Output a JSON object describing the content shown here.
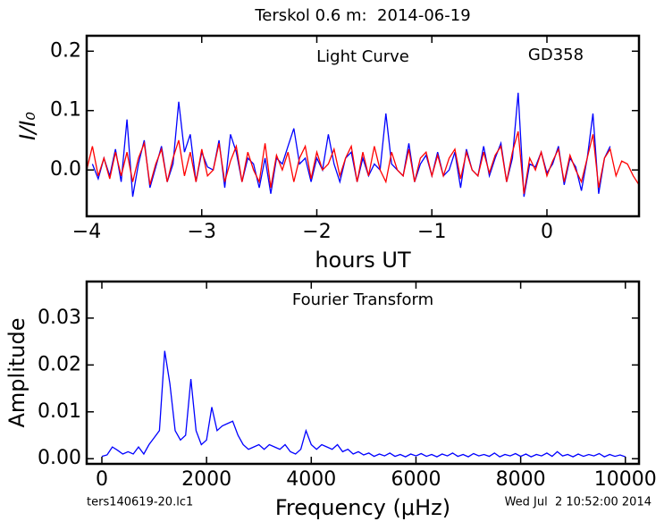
{
  "title": "Terskol 0.6 m:  2014-06-19",
  "footer_left": "ters140619-20.lc1",
  "footer_right": "Wed Jul  2 10:52:00 2014",
  "chart_data": [
    {
      "type": "line",
      "annotations": [
        "Light Curve",
        "GD358"
      ],
      "xlabel": "hours UT",
      "ylabel": "I/I₀",
      "xlim": [
        -4,
        0.8
      ],
      "ylim": [
        -0.078,
        0.226
      ],
      "xticks": [
        {
          "value": -4,
          "label": "−4"
        },
        {
          "value": -3,
          "label": "−3"
        },
        {
          "value": -2,
          "label": "−2"
        },
        {
          "value": -1,
          "label": "−1"
        },
        0
      ],
      "yticks": [
        {
          "value": 0,
          "label": "0.0"
        },
        0.1,
        0.2
      ],
      "x": [
        -4.0,
        -3.95,
        -3.9,
        -3.85,
        -3.8,
        -3.75,
        -3.7,
        -3.65,
        -3.6,
        -3.55,
        -3.5,
        -3.45,
        -3.4,
        -3.35,
        -3.3,
        -3.25,
        -3.2,
        -3.15,
        -3.1,
        -3.05,
        -3.0,
        -2.95,
        -2.9,
        -2.85,
        -2.8,
        -2.75,
        -2.7,
        -2.65,
        -2.6,
        -2.55,
        -2.5,
        -2.45,
        -2.4,
        -2.35,
        -2.3,
        -2.25,
        -2.2,
        -2.15,
        -2.1,
        -2.05,
        -2.0,
        -1.95,
        -1.9,
        -1.85,
        -1.8,
        -1.75,
        -1.7,
        -1.65,
        -1.6,
        -1.55,
        -1.5,
        -1.45,
        -1.4,
        -1.35,
        -1.3,
        -1.25,
        -1.2,
        -1.15,
        -1.1,
        -1.05,
        -1.0,
        -0.95,
        -0.9,
        -0.85,
        -0.8,
        -0.75,
        -0.7,
        -0.65,
        -0.6,
        -0.55,
        -0.5,
        -0.45,
        -0.4,
        -0.35,
        -0.3,
        -0.25,
        -0.2,
        -0.15,
        -0.1,
        -0.05,
        0.0,
        0.05,
        0.1,
        0.15,
        0.2,
        0.25,
        0.3,
        0.35,
        0.4,
        0.45,
        0.5,
        0.55,
        0.6,
        0.65,
        0.7,
        0.75,
        0.8
      ],
      "series": [
        {
          "color": "#0000ff",
          "values": [
            null,
            0.01,
            -0.015,
            0.02,
            -0.01,
            0.035,
            -0.02,
            0.085,
            -0.045,
            0.01,
            0.05,
            -0.03,
            0.005,
            0.04,
            -0.02,
            0.01,
            0.115,
            0.03,
            0.06,
            -0.02,
            0.03,
            0.005,
            0.0,
            0.05,
            -0.03,
            0.06,
            0.03,
            -0.02,
            0.02,
            0.01,
            -0.03,
            0.02,
            -0.04,
            0.02,
            0.01,
            0.04,
            0.07,
            0.01,
            0.02,
            -0.02,
            0.02,
            0.0,
            0.06,
            0.01,
            -0.02,
            0.02,
            0.03,
            -0.02,
            0.02,
            -0.01,
            0.01,
            0.0,
            0.095,
            0.01,
            0.0,
            -0.01,
            0.045,
            -0.02,
            0.01,
            0.025,
            -0.01,
            0.03,
            -0.01,
            0.0,
            0.03,
            -0.03,
            0.035,
            0.0,
            -0.01,
            0.04,
            -0.01,
            0.02,
            0.045,
            -0.02,
            0.02,
            0.13,
            -0.045,
            0.01,
            0.005,
            0.03,
            -0.005,
            0.01,
            0.04,
            -0.025,
            0.02,
            0.005,
            -0.035,
            0.02,
            0.095,
            -0.04,
            0.02,
            0.04,
            null,
            null,
            null,
            null,
            null
          ]
        },
        {
          "color": "#ff0000",
          "values": [
            0.0,
            0.04,
            -0.01,
            0.02,
            -0.015,
            0.03,
            -0.01,
            0.03,
            -0.02,
            0.02,
            0.045,
            -0.025,
            0.01,
            0.035,
            -0.02,
            0.02,
            0.05,
            -0.01,
            0.03,
            -0.02,
            0.035,
            -0.01,
            0.0,
            0.045,
            -0.02,
            0.015,
            0.04,
            -0.02,
            0.03,
            0.0,
            -0.02,
            0.045,
            -0.03,
            0.025,
            0.0,
            0.03,
            -0.02,
            0.02,
            0.04,
            -0.015,
            0.03,
            0.0,
            0.01,
            0.035,
            -0.01,
            0.02,
            0.04,
            -0.02,
            0.03,
            -0.01,
            0.04,
            0.0,
            -0.02,
            0.03,
            0.0,
            -0.01,
            0.035,
            -0.02,
            0.02,
            0.03,
            -0.01,
            0.025,
            -0.01,
            0.02,
            0.035,
            -0.015,
            0.03,
            0.0,
            -0.01,
            0.03,
            -0.005,
            0.025,
            0.04,
            -0.02,
            0.03,
            0.065,
            -0.04,
            0.02,
            0.0,
            0.03,
            -0.01,
            0.015,
            0.035,
            -0.02,
            0.025,
            0.0,
            -0.02,
            0.02,
            0.06,
            -0.03,
            0.02,
            0.035,
            -0.01,
            0.015,
            0.01,
            -0.01,
            -0.025
          ]
        }
      ]
    },
    {
      "type": "line",
      "annotations": [
        "Fourier Transform"
      ],
      "xlabel": "Frequency (μHz)",
      "ylabel": "Amplitude",
      "xlim": [
        -290,
        10260
      ],
      "ylim": [
        -0.0011,
        0.0378
      ],
      "xticks": [
        0,
        2000,
        4000,
        6000,
        8000,
        10000
      ],
      "yticks": [
        {
          "value": 0,
          "label": "0.00"
        },
        0.01,
        0.02,
        0.03
      ],
      "x": [
        0,
        100,
        200,
        300,
        400,
        500,
        600,
        700,
        800,
        900,
        1000,
        1100,
        1200,
        1300,
        1400,
        1500,
        1600,
        1700,
        1800,
        1900,
        2000,
        2100,
        2200,
        2300,
        2400,
        2500,
        2600,
        2700,
        2800,
        2900,
        3000,
        3100,
        3200,
        3300,
        3400,
        3500,
        3600,
        3700,
        3800,
        3900,
        4000,
        4100,
        4200,
        4300,
        4400,
        4500,
        4600,
        4700,
        4800,
        4900,
        5000,
        5100,
        5200,
        5300,
        5400,
        5500,
        5600,
        5700,
        5800,
        5900,
        6000,
        6100,
        6200,
        6300,
        6400,
        6500,
        6600,
        6700,
        6800,
        6900,
        7000,
        7100,
        7200,
        7300,
        7400,
        7500,
        7600,
        7700,
        7800,
        7900,
        8000,
        8100,
        8200,
        8300,
        8400,
        8500,
        8600,
        8700,
        8800,
        8900,
        9000,
        9100,
        9200,
        9300,
        9400,
        9500,
        9600,
        9700,
        9800,
        9900,
        10000
      ],
      "series": [
        {
          "color": "#0000ff",
          "values": [
            0.0005,
            0.0008,
            0.0025,
            0.0018,
            0.001,
            0.0015,
            0.001,
            0.0025,
            0.001,
            0.003,
            0.0045,
            0.006,
            0.023,
            0.016,
            0.006,
            0.004,
            0.005,
            0.017,
            0.006,
            0.003,
            0.004,
            0.011,
            0.006,
            0.007,
            0.0075,
            0.008,
            0.005,
            0.003,
            0.002,
            0.0025,
            0.003,
            0.002,
            0.003,
            0.0025,
            0.002,
            0.003,
            0.0015,
            0.001,
            0.002,
            0.006,
            0.003,
            0.002,
            0.003,
            0.0025,
            0.002,
            0.003,
            0.0015,
            0.002,
            0.001,
            0.0015,
            0.0008,
            0.0012,
            0.0005,
            0.001,
            0.0006,
            0.0012,
            0.0005,
            0.0009,
            0.0004,
            0.001,
            0.0006,
            0.0011,
            0.0005,
            0.0009,
            0.0004,
            0.001,
            0.0006,
            0.0012,
            0.0005,
            0.0009,
            0.0004,
            0.0011,
            0.0006,
            0.0009,
            0.0005,
            0.0012,
            0.0004,
            0.0009,
            0.0006,
            0.0011,
            0.0005,
            0.001,
            0.0004,
            0.0009,
            0.0006,
            0.0012,
            0.0005,
            0.0015,
            0.0006,
            0.0009,
            0.0004,
            0.001,
            0.0005,
            0.0009,
            0.0006,
            0.0011,
            0.0004,
            0.0009,
            0.0005,
            0.0008,
            0.0004
          ]
        }
      ]
    }
  ]
}
